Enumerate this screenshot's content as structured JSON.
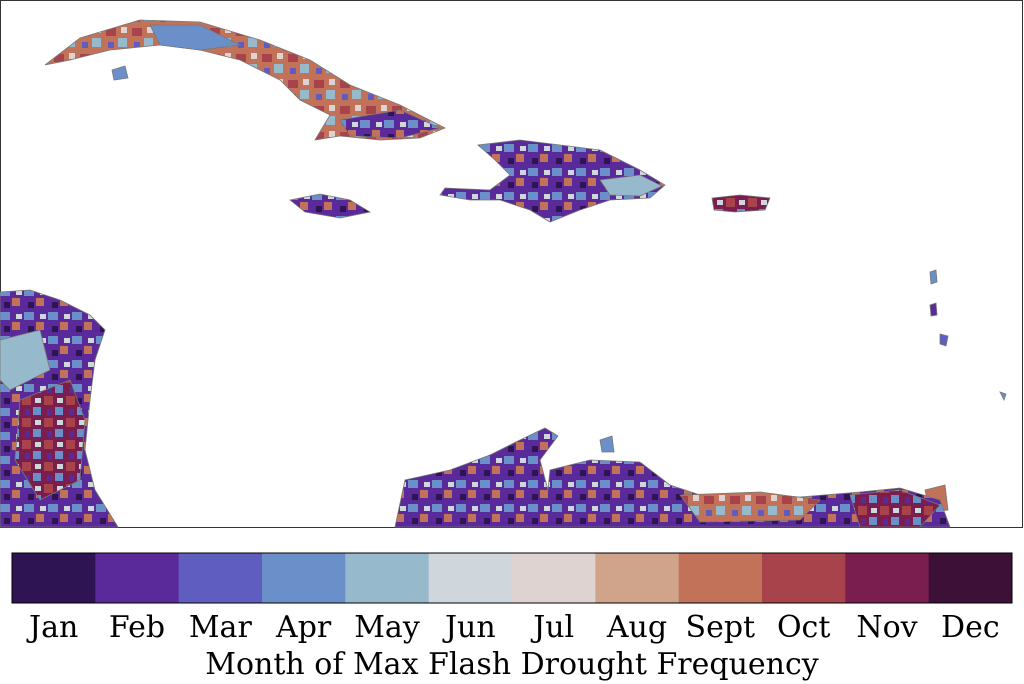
{
  "colorbar": {
    "categories": [
      "Jan",
      "Feb",
      "Mar",
      "Apr",
      "May",
      "Jun",
      "Jul",
      "Aug",
      "Sept",
      "Oct",
      "Nov",
      "Dec"
    ],
    "colors": [
      "#2e1452",
      "#5b2a9a",
      "#5f5ec0",
      "#6b8fc8",
      "#97b9cc",
      "#cfd6dc",
      "#dfd3d1",
      "#d0a48a",
      "#c17258",
      "#a8434c",
      "#7a1e4f",
      "#3d1038"
    ],
    "label": "Month of Max Flash Drought Frequency"
  }
}
